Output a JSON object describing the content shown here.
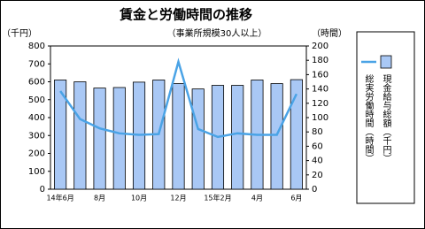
{
  "chart_data": {
    "type": "bar-line",
    "title": "賃金と労働時間の推移",
    "subtitle": "（事業所規模30人以上）",
    "y_label": "（千円）",
    "y2_label": "（時間）",
    "categories": [
      "14年6月",
      null,
      "8月",
      null,
      "10月",
      null,
      "12月",
      null,
      "15年2月",
      null,
      "4月",
      null,
      "6月"
    ],
    "series": [
      {
        "name": "現金給与総額（千円）",
        "type": "bar",
        "color": "#a9c8f5",
        "values": [
          610,
          600,
          565,
          568,
          598,
          610,
          590,
          560,
          580,
          580,
          610,
          590,
          612
        ]
      },
      {
        "name": "総実労働時間（時間）",
        "type": "line",
        "axis": "y2",
        "color": "#4aa3e6",
        "values": [
          137,
          98,
          85,
          78,
          76,
          77,
          178,
          84,
          73,
          78,
          76,
          76,
          133
        ]
      }
    ],
    "ylim": [
      0,
      800
    ],
    "yticks": [
      0,
      100,
      200,
      300,
      400,
      500,
      600,
      700,
      800
    ],
    "y2lim": [
      0,
      200
    ],
    "y2ticks": [
      0,
      20,
      40,
      60,
      80,
      100,
      120,
      140,
      160,
      180,
      200
    ]
  }
}
